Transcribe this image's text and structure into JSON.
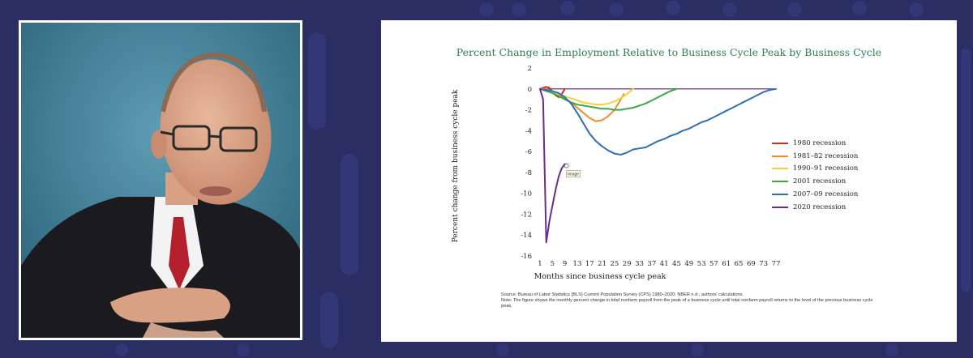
{
  "chart_data": {
    "type": "line",
    "title": "Percent Change in Employment Relative to Business Cycle Peak by Business Cycle",
    "xlabel": "Months since business cycle peak",
    "ylabel": "Percent change from business cycle peak",
    "xlim": [
      1,
      77
    ],
    "ylim": [
      -16,
      2
    ],
    "x_ticks": [
      1,
      5,
      9,
      13,
      17,
      21,
      25,
      29,
      33,
      37,
      41,
      45,
      49,
      53,
      57,
      61,
      65,
      69,
      73,
      77
    ],
    "y_ticks": [
      2,
      0,
      -2,
      -4,
      -6,
      -8,
      -10,
      -12,
      -14,
      -16
    ],
    "legend_position": "right",
    "annotation": "Image",
    "series": [
      {
        "name": "1980 recession",
        "color": "#d7261e",
        "x": [
          1,
          2,
          3,
          4,
          5,
          6,
          7,
          8,
          9
        ],
        "y": [
          0,
          0.1,
          0.2,
          0.1,
          -0.3,
          -0.6,
          -0.8,
          -0.5,
          0
        ]
      },
      {
        "name": "1981–82 recession",
        "color": "#f28c28",
        "x": [
          1,
          3,
          5,
          7,
          9,
          11,
          13,
          15,
          17,
          19,
          21,
          23,
          25,
          27,
          28
        ],
        "y": [
          0,
          0,
          -0.3,
          -0.6,
          -0.9,
          -1.3,
          -1.8,
          -2.3,
          -2.8,
          -3.1,
          -3.0,
          -2.6,
          -2.0,
          -1.0,
          -0.5
        ]
      },
      {
        "name": "1990–91 recession",
        "color": "#f5d23c",
        "x": [
          1,
          3,
          5,
          7,
          9,
          11,
          13,
          15,
          17,
          19,
          21,
          23,
          25,
          27,
          29,
          31
        ],
        "y": [
          0,
          -0.1,
          -0.3,
          -0.5,
          -0.7,
          -0.9,
          -1.1,
          -1.3,
          -1.4,
          -1.5,
          -1.5,
          -1.4,
          -1.2,
          -0.9,
          -0.5,
          0
        ]
      },
      {
        "name": "2001 recession",
        "color": "#3aa845",
        "x": [
          1,
          3,
          5,
          7,
          9,
          11,
          13,
          15,
          17,
          19,
          21,
          23,
          25,
          27,
          29,
          31,
          33,
          35,
          37,
          39,
          41,
          43,
          45
        ],
        "y": [
          0,
          -0.2,
          -0.4,
          -0.7,
          -1.0,
          -1.3,
          -1.5,
          -1.6,
          -1.7,
          -1.8,
          -1.9,
          -1.9,
          -2.0,
          -2.0,
          -1.9,
          -1.8,
          -1.6,
          -1.4,
          -1.1,
          -0.8,
          -0.5,
          -0.2,
          0
        ]
      },
      {
        "name": "2007–09 recession",
        "color": "#2e6fb5",
        "x": [
          1,
          3,
          5,
          7,
          9,
          11,
          13,
          15,
          17,
          19,
          21,
          23,
          25,
          27,
          29,
          31,
          33,
          35,
          37,
          39,
          41,
          43,
          45,
          47,
          49,
          51,
          53,
          55,
          57,
          59,
          61,
          63,
          65,
          67,
          69,
          71,
          73,
          75,
          77
        ],
        "y": [
          0,
          -0.1,
          -0.2,
          -0.4,
          -0.8,
          -1.4,
          -2.3,
          -3.3,
          -4.3,
          -5.0,
          -5.5,
          -5.9,
          -6.2,
          -6.3,
          -6.1,
          -5.8,
          -5.7,
          -5.6,
          -5.3,
          -5.0,
          -4.8,
          -4.5,
          -4.3,
          -4.0,
          -3.8,
          -3.5,
          -3.2,
          -3.0,
          -2.7,
          -2.4,
          -2.1,
          -1.8,
          -1.5,
          -1.2,
          -0.9,
          -0.6,
          -0.3,
          -0.1,
          0
        ]
      },
      {
        "name": "2020 recession",
        "color": "#6a2c91",
        "x": [
          1,
          2,
          3,
          4,
          5,
          6,
          7,
          8,
          9
        ],
        "y": [
          0,
          -1.0,
          -14.7,
          -12.7,
          -11.2,
          -9.7,
          -8.4,
          -7.6,
          -7.2
        ]
      }
    ]
  },
  "slide": {
    "source": "Source: Bureau of Labor Statistics (BLS) Current Population Survey (CPS) 1980–2020; NBER n.d.; authors' calculations.",
    "note": "Note: The figure shows the monthly percent change in total nonfarm payroll from the peak of a business cycle until total nonfarm payroll returns to the level of the previous business cycle peak."
  }
}
